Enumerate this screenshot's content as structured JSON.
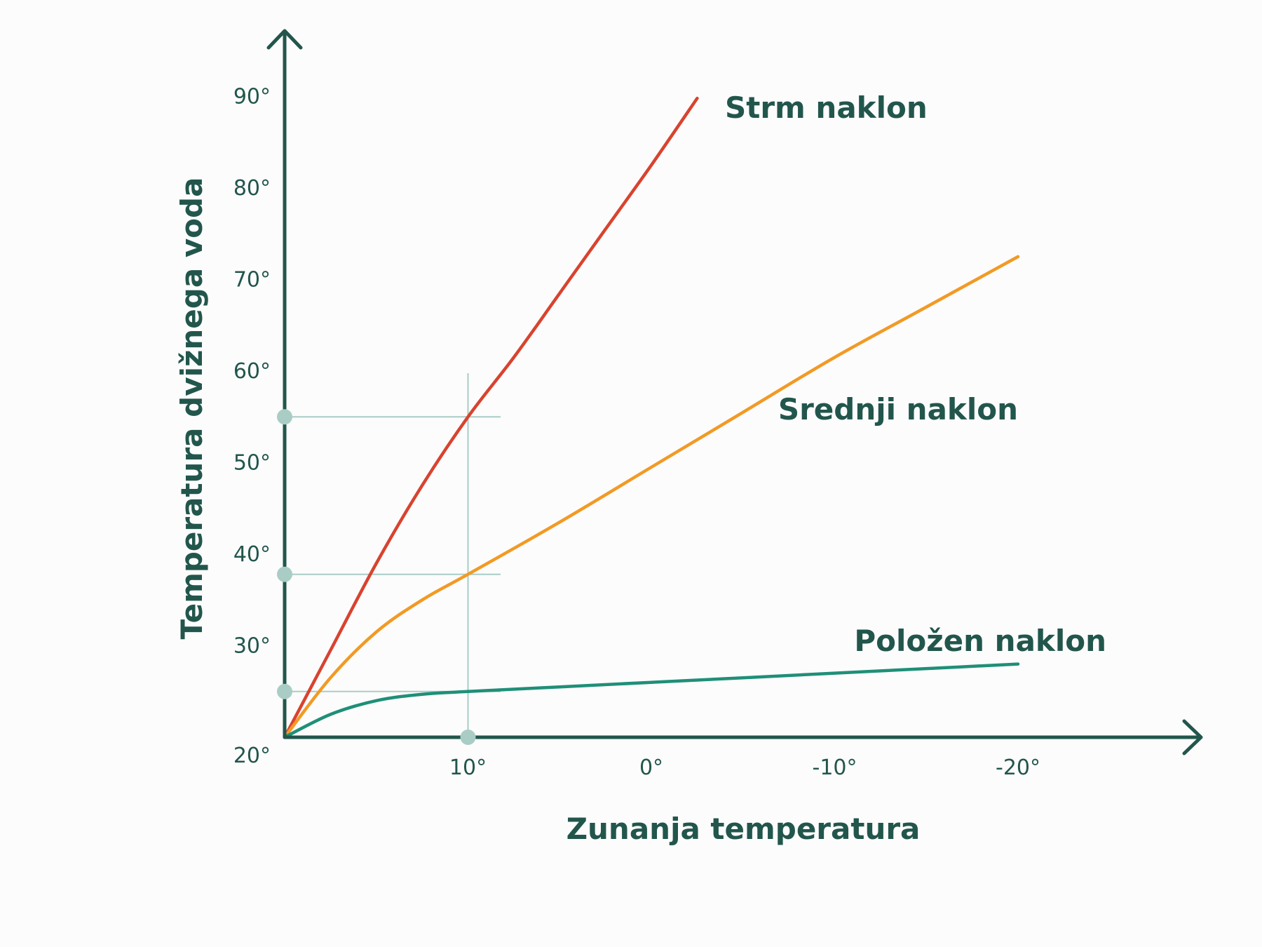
{
  "colors": {
    "axis": "#22564c",
    "guide": "#a9cdc4",
    "marker": "#a9cdc4",
    "text": "#22564c"
  },
  "chart_data": {
    "type": "line",
    "title": "",
    "xlabel": "Zunanja temperatura",
    "ylabel": "Temperatura dvižnega voda",
    "x_reversed": true,
    "xlim": [
      20,
      -20
    ],
    "ylim": [
      20,
      95
    ],
    "grid": false,
    "legend": "inline labels at line ends",
    "x_ticks": [
      {
        "value": 10,
        "label": "10°"
      },
      {
        "value": 0,
        "label": "0°"
      },
      {
        "value": -10,
        "label": "-10°"
      },
      {
        "value": -20,
        "label": "-20°"
      }
    ],
    "y_ticks": [
      {
        "value": 20,
        "label": "20°"
      },
      {
        "value": 30,
        "label": "30°"
      },
      {
        "value": 40,
        "label": "40°"
      },
      {
        "value": 50,
        "label": "50°"
      },
      {
        "value": 60,
        "label": "60°"
      },
      {
        "value": 70,
        "label": "70°"
      },
      {
        "value": 80,
        "label": "80°"
      },
      {
        "value": 90,
        "label": "90°"
      }
    ],
    "series": [
      {
        "name": "Strm naklon",
        "color": "#d8432f",
        "x": [
          20,
          17.5,
          15,
          12.5,
          10,
          7.5,
          5,
          2.5,
          0,
          -2.5
        ],
        "y": [
          20,
          29.5,
          39,
          47.5,
          55,
          61.5,
          68.5,
          75.5,
          82.5,
          89.8
        ]
      },
      {
        "name": "Srednji naklon",
        "color": "#f29a25",
        "x": [
          20,
          17.5,
          15,
          12.5,
          10,
          5,
          0,
          -5,
          -10,
          -15,
          -20
        ],
        "y": [
          20,
          26.5,
          31.5,
          35,
          37.8,
          43.5,
          49.5,
          55.5,
          61.5,
          67,
          72.5
        ]
      },
      {
        "name": "Položen naklon",
        "color": "#1f8f78",
        "x": [
          20,
          17.5,
          15,
          12.5,
          10,
          5,
          0,
          -5,
          -10,
          -15,
          -20
        ],
        "y": [
          20,
          22.5,
          24,
          24.7,
          25,
          25.5,
          26,
          26.5,
          27,
          27.5,
          28
        ]
      }
    ],
    "guides": {
      "x": 10,
      "y_values": [
        55,
        37.8,
        25
      ]
    }
  }
}
